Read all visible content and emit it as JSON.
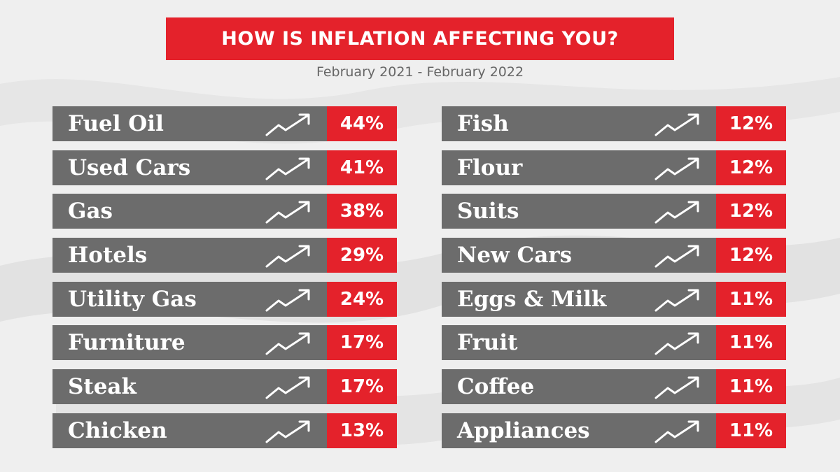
{
  "title": "HOW IS INFLATION AFFECTING YOU?",
  "subtitle": "February 2021 - February 2022",
  "colors": {
    "accent": "#e4222b",
    "bar": "#6c6c6c",
    "background": "#efefef"
  },
  "icon": "trend-up-arrow-icon",
  "chart_data": {
    "type": "table",
    "title": "HOW IS INFLATION AFFECTING YOU?",
    "subtitle": "February 2021 - February 2022",
    "columns": [
      [
        {
          "label": "Fuel Oil",
          "value": 44,
          "display": "44%"
        },
        {
          "label": "Used Cars",
          "value": 41,
          "display": "41%"
        },
        {
          "label": "Gas",
          "value": 38,
          "display": "38%"
        },
        {
          "label": "Hotels",
          "value": 29,
          "display": "29%"
        },
        {
          "label": "Utility Gas",
          "value": 24,
          "display": "24%"
        },
        {
          "label": "Furniture",
          "value": 17,
          "display": "17%"
        },
        {
          "label": "Steak",
          "value": 17,
          "display": "17%"
        },
        {
          "label": "Chicken",
          "value": 13,
          "display": "13%"
        }
      ],
      [
        {
          "label": "Fish",
          "value": 12,
          "display": "12%"
        },
        {
          "label": "Flour",
          "value": 12,
          "display": "12%"
        },
        {
          "label": "Suits",
          "value": 12,
          "display": "12%"
        },
        {
          "label": "New Cars",
          "value": 12,
          "display": "12%"
        },
        {
          "label": "Eggs & Milk",
          "value": 11,
          "display": "11%"
        },
        {
          "label": "Fruit",
          "value": 11,
          "display": "11%"
        },
        {
          "label": "Coffee",
          "value": 11,
          "display": "11%"
        },
        {
          "label": "Appliances",
          "value": 11,
          "display": "11%"
        }
      ]
    ]
  }
}
